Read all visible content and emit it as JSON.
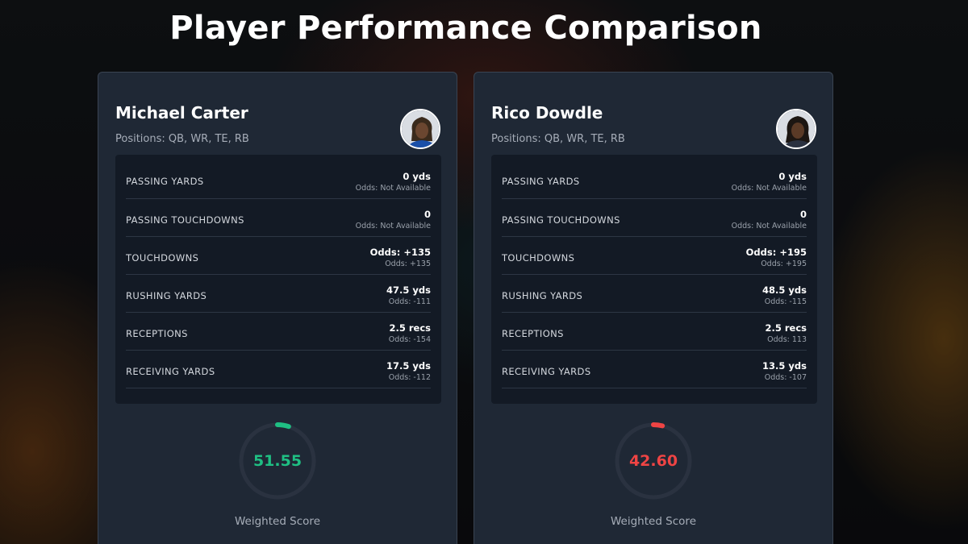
{
  "title": "Player Performance Comparison",
  "players": [
    {
      "name": "Michael Carter",
      "positions": "Positions: QB, WR, TE, RB",
      "avatar_icon": "player-headshot-icon",
      "jersey_color": "#1a4fa8",
      "stats": [
        {
          "label": "PASSING YARDS",
          "value": "0 yds",
          "odds": "Odds: Not Available"
        },
        {
          "label": "PASSING TOUCHDOWNS",
          "value": "0",
          "odds": "Odds: Not Available"
        },
        {
          "label": "TOUCHDOWNS",
          "value": "Odds: +135",
          "odds": "Odds: +135"
        },
        {
          "label": "RUSHING YARDS",
          "value": "47.5 yds",
          "odds": "Odds: -111"
        },
        {
          "label": "RECEPTIONS",
          "value": "2.5 recs",
          "odds": "Odds: -154"
        },
        {
          "label": "RECEIVING YARDS",
          "value": "17.5 yds",
          "odds": "Odds: -112"
        }
      ],
      "score": "51.55",
      "score_fraction": 0.05,
      "score_color": "#1fbf83",
      "score_label": "Weighted Score"
    },
    {
      "name": "Rico Dowdle",
      "positions": "Positions: QB, WR, TE, RB",
      "avatar_icon": "player-headshot-icon",
      "jersey_color": "#2a3140",
      "stats": [
        {
          "label": "PASSING YARDS",
          "value": "0 yds",
          "odds": "Odds: Not Available"
        },
        {
          "label": "PASSING TOUCHDOWNS",
          "value": "0",
          "odds": "Odds: Not Available"
        },
        {
          "label": "TOUCHDOWNS",
          "value": "Odds: +195",
          "odds": "Odds: +195"
        },
        {
          "label": "RUSHING YARDS",
          "value": "48.5 yds",
          "odds": "Odds: -115"
        },
        {
          "label": "RECEPTIONS",
          "value": "2.5 recs",
          "odds": "Odds: 113"
        },
        {
          "label": "RECEIVING YARDS",
          "value": "13.5 yds",
          "odds": "Odds: -107"
        }
      ],
      "score": "42.60",
      "score_fraction": 0.04,
      "score_color": "#ef4444",
      "score_label": "Weighted Score"
    }
  ],
  "colors": {
    "card_bg": "#1f2835",
    "stats_bg": "#131a25",
    "gauge_track": "#2a3240"
  }
}
